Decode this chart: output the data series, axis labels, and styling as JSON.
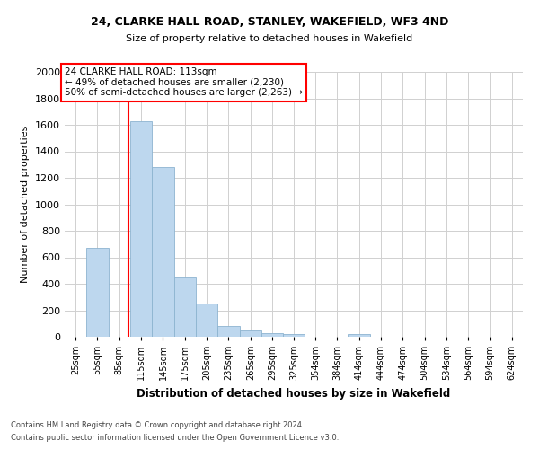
{
  "title1": "24, CLARKE HALL ROAD, STANLEY, WAKEFIELD, WF3 4ND",
  "title2": "Size of property relative to detached houses in Wakefield",
  "xlabel": "Distribution of detached houses by size in Wakefield",
  "ylabel": "Number of detached properties",
  "footnote1": "Contains HM Land Registry data © Crown copyright and database right 2024.",
  "footnote2": "Contains public sector information licensed under the Open Government Licence v3.0.",
  "annotation_line1": "24 CLARKE HALL ROAD: 113sqm",
  "annotation_line2": "← 49% of detached houses are smaller (2,230)",
  "annotation_line3": "50% of semi-detached houses are larger (2,263) →",
  "property_size": 113,
  "bar_color": "#bdd7ee",
  "bar_edge_color": "#8db4d0",
  "marker_color": "red",
  "categories": [
    "25sqm",
    "55sqm",
    "85sqm",
    "115sqm",
    "145sqm",
    "175sqm",
    "205sqm",
    "235sqm",
    "265sqm",
    "295sqm",
    "325sqm",
    "354sqm",
    "384sqm",
    "414sqm",
    "444sqm",
    "474sqm",
    "504sqm",
    "534sqm",
    "564sqm",
    "594sqm",
    "624sqm"
  ],
  "bar_lefts": [
    25,
    55,
    85,
    115,
    145,
    175,
    205,
    235,
    265,
    295,
    325,
    354,
    384,
    414,
    444,
    474,
    504,
    534,
    564,
    594,
    624
  ],
  "bar_widths": [
    30,
    30,
    30,
    30,
    30,
    30,
    30,
    30,
    30,
    30,
    29,
    30,
    30,
    30,
    30,
    30,
    30,
    30,
    30,
    30,
    30
  ],
  "bar_heights": [
    0,
    670,
    0,
    1630,
    1280,
    450,
    250,
    80,
    45,
    25,
    20,
    0,
    0,
    20,
    0,
    0,
    0,
    0,
    0,
    0,
    0
  ],
  "ylim": [
    0,
    2000
  ],
  "yticks": [
    0,
    200,
    400,
    600,
    800,
    1000,
    1200,
    1400,
    1600,
    1800,
    2000
  ],
  "grid_color": "#d0d0d0",
  "background_color": "#ffffff",
  "fig_width": 6.0,
  "fig_height": 5.0,
  "dpi": 100
}
